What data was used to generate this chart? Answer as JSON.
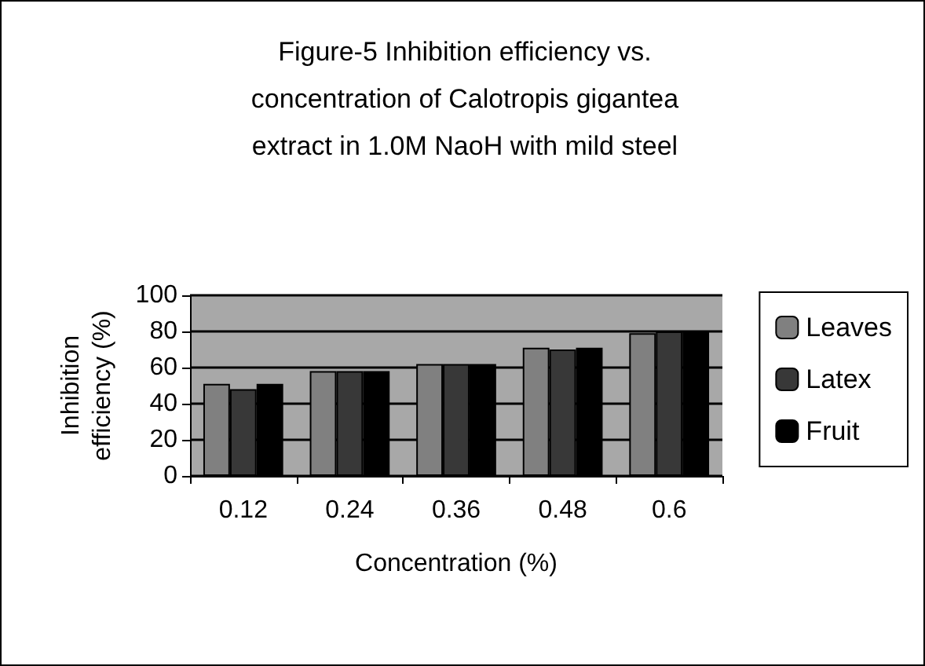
{
  "chart_data": {
    "type": "bar",
    "title": "Figure-5 Inhibition efficiency vs.\nconcentration of Calotropis gigantea\nextract in 1.0M NaoH with mild steel",
    "xlabel": "Concentration (%)",
    "ylabel": "Inhibition\nefficiency (%)",
    "categories": [
      "0.12",
      "0.24",
      "0.36",
      "0.48",
      "0.6"
    ],
    "series": [
      {
        "name": "Leaves",
        "color": "#808080",
        "values": [
          51,
          58,
          62,
          71,
          79
        ]
      },
      {
        "name": "Latex",
        "color": "#383838",
        "values": [
          48,
          58,
          62,
          70,
          80
        ]
      },
      {
        "name": "Fruit",
        "color": "#000000",
        "values": [
          51,
          58,
          62,
          71,
          80
        ]
      }
    ],
    "ylim": [
      0,
      100
    ],
    "yticks": [
      0,
      20,
      40,
      60,
      80,
      100
    ],
    "grid": "y",
    "legend": "right"
  }
}
